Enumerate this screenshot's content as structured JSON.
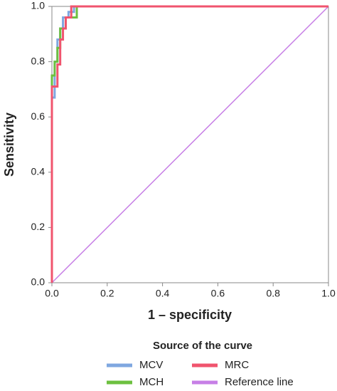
{
  "chart_data": {
    "type": "line",
    "x_label": "1 – specificity",
    "y_label": "Sensitivity",
    "legend_title": "Source of the curve",
    "xlim": [
      0,
      1
    ],
    "ylim": [
      0,
      1
    ],
    "xticks": [
      {
        "value": 0,
        "label": "0.0"
      },
      {
        "value": 0.2,
        "label": "0.2"
      },
      {
        "value": 0.4,
        "label": "0.4"
      },
      {
        "value": 0.6,
        "label": "0.6"
      },
      {
        "value": 0.8,
        "label": "0.8"
      },
      {
        "value": 1,
        "label": "1.0"
      }
    ],
    "yticks": [
      {
        "value": 0,
        "label": "0.0"
      },
      {
        "value": 0.2,
        "label": "0.2"
      },
      {
        "value": 0.4,
        "label": "0.4"
      },
      {
        "value": 0.6,
        "label": "0.6"
      },
      {
        "value": 0.8,
        "label": "0.8"
      },
      {
        "value": 1,
        "label": "1.0"
      }
    ],
    "grid": false,
    "series": [
      {
        "name": "MCV",
        "color": "#7fa7e0",
        "x": [
          0,
          0,
          0.01,
          0.01,
          0.02,
          0.02,
          0.03,
          0.03,
          0.04,
          0.04,
          0.06,
          0.06,
          0.08,
          0.08,
          1
        ],
        "values": [
          0,
          0.67,
          0.67,
          0.8,
          0.8,
          0.88,
          0.88,
          0.92,
          0.92,
          0.96,
          0.96,
          0.98,
          0.98,
          1,
          1
        ]
      },
      {
        "name": "MRC",
        "color": "#f0546e",
        "x": [
          0,
          0,
          0.02,
          0.02,
          0.03,
          0.03,
          0.04,
          0.04,
          0.05,
          0.05,
          0.07,
          0.07,
          1
        ],
        "values": [
          0,
          0.71,
          0.71,
          0.79,
          0.79,
          0.88,
          0.88,
          0.92,
          0.92,
          0.96,
          0.96,
          1,
          1
        ]
      },
      {
        "name": "MCH",
        "color": "#6dc040",
        "x": [
          0,
          0,
          0.01,
          0.01,
          0.02,
          0.02,
          0.03,
          0.03,
          0.05,
          0.05,
          0.09,
          0.09,
          1
        ],
        "values": [
          0,
          0.75,
          0.75,
          0.8,
          0.8,
          0.85,
          0.85,
          0.92,
          0.92,
          0.96,
          0.96,
          1,
          1
        ]
      },
      {
        "name": "Reference line",
        "color": "#c77fe6",
        "x": [
          0,
          1
        ],
        "values": [
          0,
          1
        ]
      }
    ]
  }
}
